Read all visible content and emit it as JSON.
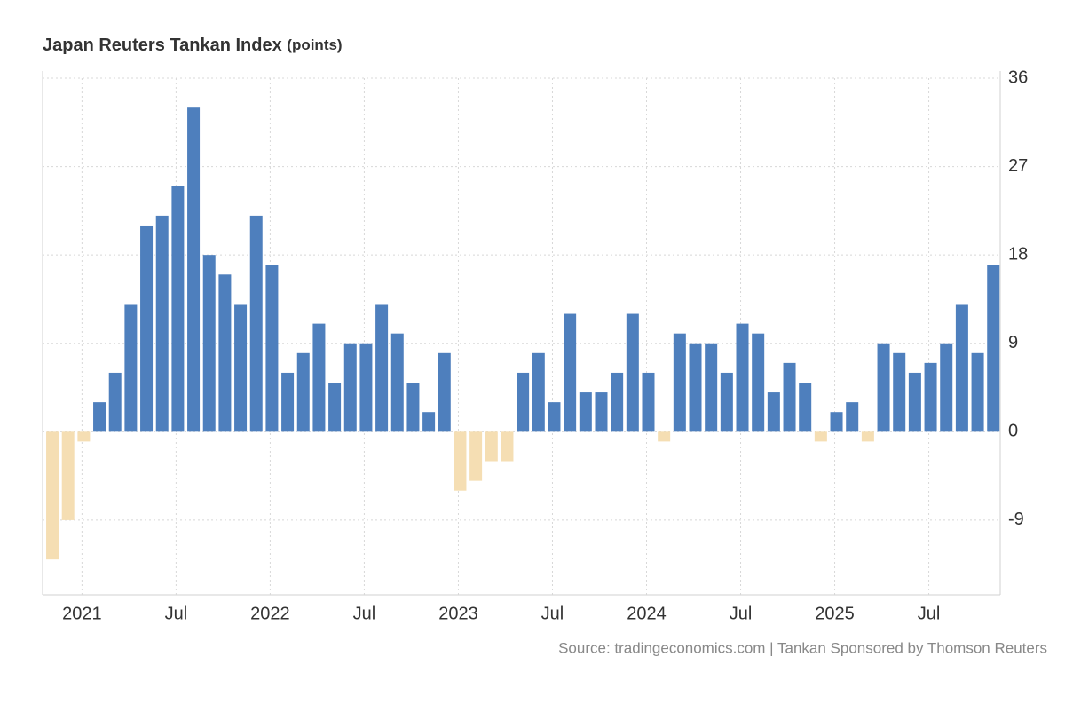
{
  "chart_data": {
    "type": "bar",
    "title": "Japan Reuters Tankan Index",
    "unit": "(points)",
    "source": "Source: tradingeconomics.com | Tankan Sponsored by Thomson Reuters",
    "categories": [
      null,
      null,
      "2021",
      null,
      null,
      null,
      null,
      null,
      "Jul",
      null,
      null,
      null,
      null,
      null,
      "2022",
      null,
      null,
      null,
      null,
      null,
      "Jul",
      null,
      null,
      null,
      null,
      null,
      "2023",
      null,
      null,
      null,
      null,
      null,
      "Jul",
      null,
      null,
      null,
      null,
      null,
      "2024",
      null,
      null,
      null,
      null,
      null,
      "Jul",
      null,
      null,
      null,
      null,
      null,
      "2025",
      null,
      null,
      null,
      null,
      null,
      "Jul",
      null,
      null,
      null,
      null
    ],
    "values": [
      -13,
      -9,
      -1,
      3,
      6,
      13,
      21,
      22,
      25,
      33,
      18,
      16,
      13,
      22,
      17,
      6,
      8,
      11,
      5,
      9,
      9,
      13,
      10,
      5,
      2,
      8,
      -6,
      -5,
      -3,
      -3,
      6,
      8,
      3,
      12,
      4,
      4,
      6,
      12,
      6,
      -1,
      10,
      9,
      9,
      6,
      11,
      10,
      4,
      7,
      5,
      -1,
      2,
      3,
      -1,
      9,
      8,
      6,
      7,
      9,
      13,
      8,
      17
    ],
    "color": "#4e7fbd",
    "negative_color": "#f5deb3",
    "ylim": [
      -16.6,
      36
    ],
    "yticks": [
      -9,
      0,
      9,
      18,
      27,
      36
    ],
    "grid": true
  }
}
